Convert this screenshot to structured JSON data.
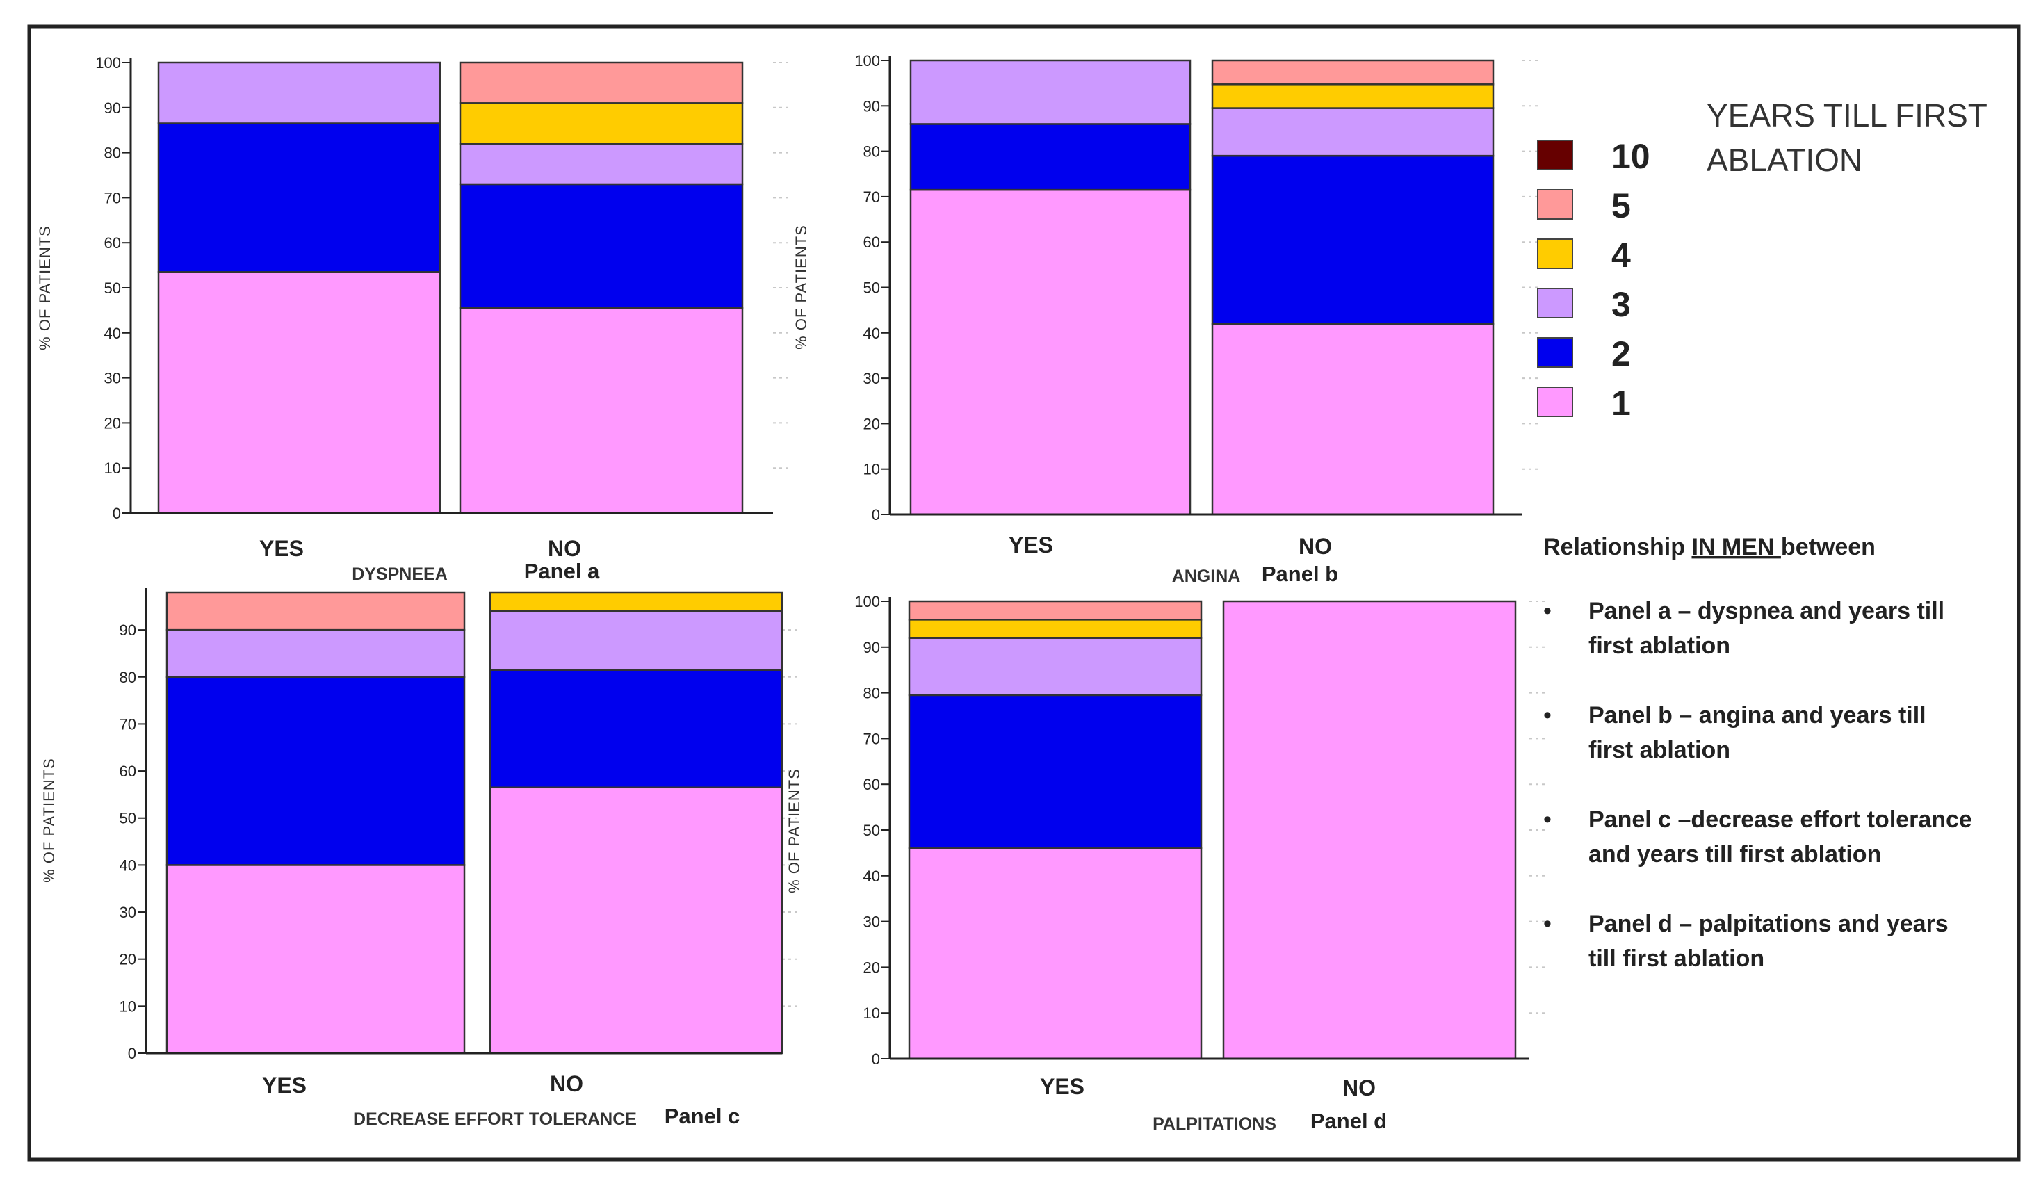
{
  "colors": {
    "1": "#ff99ff",
    "2": "#0000ee",
    "3": "#cc99ff",
    "4": "#ffcc00",
    "5": "#ff9999",
    "10": "#660000"
  },
  "chart_data": [
    {
      "type": "bar",
      "stacked": true,
      "title": "Panel a",
      "xlabel": "DYSPNEEA",
      "ylabel": "% OF PATIENTS",
      "categories": [
        "YES",
        "NO"
      ],
      "ylim": [
        0,
        100
      ],
      "yticks": [
        "0",
        "10",
        "20",
        "30",
        "40",
        "50",
        "60",
        "70",
        "80",
        "90",
        "100"
      ],
      "series": [
        {
          "name": "1",
          "values": [
            53.5,
            45.5
          ]
        },
        {
          "name": "2",
          "values": [
            33.0,
            27.5
          ]
        },
        {
          "name": "3",
          "values": [
            13.5,
            9.0
          ]
        },
        {
          "name": "4",
          "values": [
            0,
            9.0
          ]
        },
        {
          "name": "5",
          "values": [
            0,
            9.0
          ]
        }
      ]
    },
    {
      "type": "bar",
      "stacked": true,
      "title": "Panel b",
      "xlabel": "ANGINA",
      "ylabel": "% OF PATIENTS",
      "categories": [
        "YES",
        "NO"
      ],
      "ylim": [
        0,
        100
      ],
      "yticks": [
        "0",
        "10",
        "20",
        "30",
        "40",
        "50",
        "60",
        "70",
        "80",
        "90",
        "100"
      ],
      "series": [
        {
          "name": "1",
          "values": [
            71.5,
            42.0
          ]
        },
        {
          "name": "2",
          "values": [
            14.5,
            37.0
          ]
        },
        {
          "name": "3",
          "values": [
            14.0,
            10.5
          ]
        },
        {
          "name": "4",
          "values": [
            0,
            5.25
          ]
        },
        {
          "name": "5",
          "values": [
            0,
            5.25
          ]
        }
      ]
    },
    {
      "type": "bar",
      "stacked": true,
      "title": "Panel c",
      "xlabel": "DECREASE EFFORT TOLERANCE",
      "ylabel": "% OF PATIENTS",
      "categories": [
        "YES",
        "NO"
      ],
      "ylim": [
        0,
        98
      ],
      "yticks": [
        "0",
        "10",
        "20",
        "30",
        "40",
        "50",
        "60",
        "70",
        "80",
        "90"
      ],
      "series": [
        {
          "name": "1",
          "values": [
            40.0,
            56.5
          ]
        },
        {
          "name": "2",
          "values": [
            40.0,
            25.0
          ]
        },
        {
          "name": "3",
          "values": [
            10.0,
            12.5
          ]
        },
        {
          "name": "4",
          "values": [
            0,
            6.0
          ]
        },
        {
          "name": "5",
          "values": [
            10.0,
            0
          ]
        }
      ]
    },
    {
      "type": "bar",
      "stacked": true,
      "title": "Panel d",
      "xlabel": "PALPITATIONS",
      "ylabel": "% OF PATIENTS",
      "categories": [
        "YES",
        "NO"
      ],
      "ylim": [
        0,
        100
      ],
      "yticks": [
        "0",
        "10",
        "20",
        "30",
        "40",
        "50",
        "60",
        "70",
        "80",
        "90",
        "100"
      ],
      "series": [
        {
          "name": "1",
          "values": [
            46.0,
            100
          ]
        },
        {
          "name": "2",
          "values": [
            33.5,
            0
          ]
        },
        {
          "name": "3",
          "values": [
            12.5,
            0
          ]
        },
        {
          "name": "4",
          "values": [
            4.0,
            0
          ]
        },
        {
          "name": "5",
          "values": [
            4.0,
            0
          ]
        }
      ]
    }
  ],
  "legend": {
    "title_line1": "YEARS TILL FIRST",
    "title_line2": "ABLATION",
    "entries": [
      "10",
      "5",
      "4",
      "3",
      "2",
      "1"
    ]
  },
  "description": {
    "title_prefix": "Relationship ",
    "title_underlined": "IN MEN ",
    "title_suffix": "between",
    "bullet_symbol": "•",
    "items": [
      {
        "line1": "Panel a – dyspnea and years till",
        "line2": "first ablation"
      },
      {
        "line1": " Panel b – angina and years till",
        "line2": "first ablation"
      },
      {
        "line1": "Panel c –decrease effort tolerance",
        "line2": "and years till first ablation"
      },
      {
        "line1": "Panel d – palpitations and years",
        "line2": "till first ablation"
      }
    ]
  }
}
